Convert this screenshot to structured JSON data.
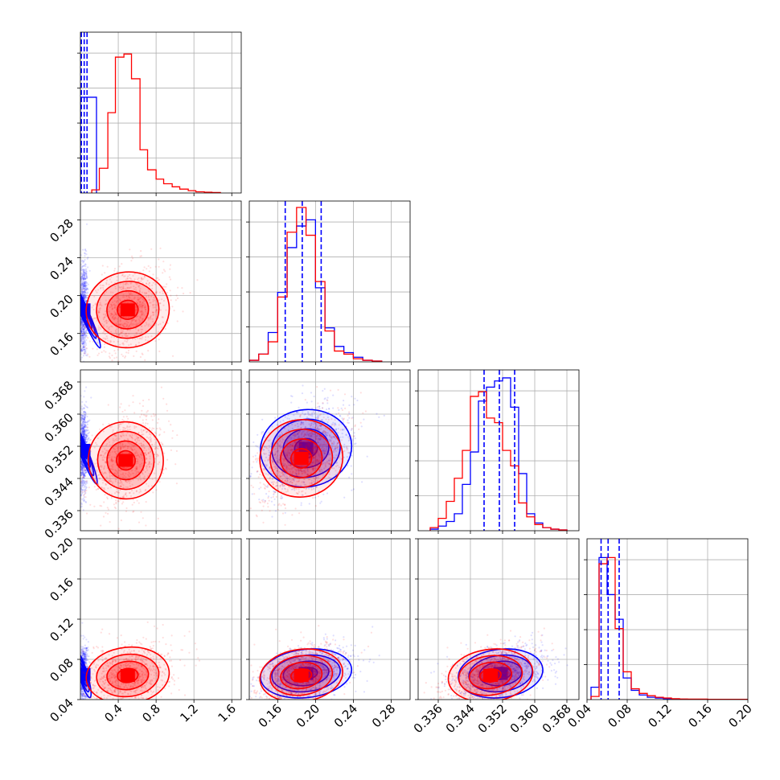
{
  "chart_data": {
    "type": "corner",
    "title": "",
    "grid": true,
    "series": [
      {
        "name": "",
        "color": "#0000ff"
      },
      {
        "name": "",
        "color": "#ff0000"
      }
    ],
    "parameters": [
      {
        "xlim": [
          0.0,
          1.7
        ],
        "ticks": [
          0.4,
          0.8,
          1.2,
          1.6
        ],
        "tick_labels": [
          "0.4",
          "0.8",
          "1.2",
          "1.6"
        ]
      },
      {
        "xlim": [
          0.13,
          0.3
        ],
        "ticks": [
          0.16,
          0.2,
          0.24,
          0.28
        ],
        "tick_labels": [
          "0.16",
          "0.20",
          "0.24",
          "0.28"
        ]
      },
      {
        "xlim": [
          0.331,
          0.371
        ],
        "ticks": [
          0.336,
          0.344,
          0.352,
          0.36,
          0.368
        ],
        "tick_labels": [
          "0.336",
          "0.344",
          "0.352",
          "0.360",
          "0.368"
        ]
      },
      {
        "xlim": [
          0.04,
          0.2
        ],
        "ticks": [
          0.04,
          0.08,
          0.12,
          0.16,
          0.2
        ],
        "tick_labels": [
          "0.04",
          "0.08",
          "0.12",
          "0.16",
          "0.20"
        ]
      }
    ],
    "quantiles": {
      "series": "blue",
      "values": [
        [
          0.01,
          0.04,
          0.07
        ],
        [
          0.168,
          0.186,
          0.206
        ],
        [
          0.3474,
          0.3512,
          0.355
        ],
        [
          0.054,
          0.061,
          0.072
        ]
      ]
    },
    "histograms": [
      {
        "blue": {
          "edges": [
            0.0,
            0.17
          ],
          "counts": [
            0.62
          ]
        },
        "red": {
          "edges": [
            0.12,
            0.2,
            0.29,
            0.37,
            0.46,
            0.54,
            0.63,
            0.71,
            0.8,
            0.88,
            0.97,
            1.05,
            1.14,
            1.22,
            1.31,
            1.39,
            1.48
          ],
          "counts": [
            0.02,
            0.16,
            0.52,
            0.88,
            0.9,
            0.74,
            0.28,
            0.15,
            0.09,
            0.06,
            0.04,
            0.025,
            0.015,
            0.008,
            0.005,
            0.003
          ]
        }
      },
      {
        "blue": {
          "edges": [
            0.13,
            0.14,
            0.15,
            0.16,
            0.17,
            0.18,
            0.19,
            0.2,
            0.21,
            0.22,
            0.23,
            0.24,
            0.25,
            0.26,
            0.27
          ],
          "counts": [
            0.01,
            0.05,
            0.19,
            0.45,
            0.74,
            0.88,
            0.92,
            0.48,
            0.22,
            0.1,
            0.06,
            0.03,
            0.01,
            0.005
          ]
        },
        "red": {
          "edges": [
            0.13,
            0.14,
            0.15,
            0.16,
            0.17,
            0.18,
            0.19,
            0.2,
            0.21,
            0.22,
            0.23,
            0.24,
            0.25,
            0.26,
            0.27
          ],
          "counts": [
            0.01,
            0.05,
            0.13,
            0.42,
            0.84,
            1.0,
            0.82,
            0.52,
            0.2,
            0.07,
            0.05,
            0.02,
            0.01,
            0.005
          ]
        }
      },
      {
        "blue": {
          "edges": [
            0.334,
            0.336,
            0.338,
            0.34,
            0.342,
            0.344,
            0.346,
            0.348,
            0.35,
            0.352,
            0.354,
            0.356,
            0.358,
            0.36,
            0.362,
            0.364,
            0.366,
            0.368
          ],
          "counts": [
            0.01,
            0.03,
            0.06,
            0.11,
            0.3,
            0.51,
            0.84,
            0.93,
            0.97,
            0.99,
            0.8,
            0.37,
            0.11,
            0.05,
            0.02,
            0.01,
            0.005
          ]
        },
        "red": {
          "edges": [
            0.334,
            0.336,
            0.338,
            0.34,
            0.342,
            0.344,
            0.346,
            0.348,
            0.35,
            0.352,
            0.354,
            0.356,
            0.358,
            0.36,
            0.362,
            0.364,
            0.366,
            0.368
          ],
          "counts": [
            0.02,
            0.08,
            0.19,
            0.34,
            0.52,
            0.87,
            0.9,
            0.73,
            0.7,
            0.52,
            0.42,
            0.18,
            0.09,
            0.04,
            0.02,
            0.01,
            0.005
          ]
        }
      },
      {
        "blue": {
          "edges": [
            0.044,
            0.052,
            0.06,
            0.068,
            0.076,
            0.084,
            0.092,
            0.1,
            0.108,
            0.116,
            0.124,
            0.132,
            0.14
          ],
          "counts": [
            0.08,
            0.92,
            0.68,
            0.52,
            0.14,
            0.06,
            0.03,
            0.015,
            0.01,
            0.006,
            0.004,
            0.002
          ]
        },
        "red": {
          "edges": [
            0.044,
            0.052,
            0.06,
            0.068,
            0.076,
            0.084,
            0.092,
            0.1,
            0.108,
            0.116,
            0.124,
            0.132,
            0.14,
            0.16,
            0.2
          ],
          "counts": [
            0.02,
            0.88,
            0.92,
            0.46,
            0.18,
            0.07,
            0.04,
            0.025,
            0.015,
            0.01,
            0.006,
            0.004,
            0.003,
            0.002
          ]
        }
      }
    ],
    "scatter_2d": [
      {
        "row": 1,
        "col": 0,
        "blue": {
          "mean": [
            0.03,
            0.185
          ],
          "sd": [
            0.02,
            0.022
          ],
          "rho": 0.1
        },
        "red": {
          "mean": [
            0.5,
            0.185
          ],
          "sd": [
            0.2,
            0.02
          ],
          "rho": 0.3
        }
      },
      {
        "row": 2,
        "col": 0,
        "blue": {
          "mean": [
            0.03,
            0.351
          ],
          "sd": [
            0.02,
            0.0045
          ],
          "rho": 0.1
        },
        "red": {
          "mean": [
            0.48,
            0.3485
          ],
          "sd": [
            0.18,
            0.0048
          ],
          "rho": 0.35
        }
      },
      {
        "row": 2,
        "col": 1,
        "blue": {
          "mean": [
            0.19,
            0.3515
          ],
          "sd": [
            0.022,
            0.0048
          ],
          "rho": 0.35
        },
        "red": {
          "mean": [
            0.185,
            0.349
          ],
          "sd": [
            0.02,
            0.0048
          ],
          "rho": 0.5
        }
      },
      {
        "row": 3,
        "col": 0,
        "blue": {
          "mean": [
            0.03,
            0.065
          ],
          "sd": [
            0.02,
            0.012
          ],
          "rho": 0.1
        },
        "red": {
          "mean": [
            0.5,
            0.064
          ],
          "sd": [
            0.2,
            0.014
          ],
          "rho": 0.3
        }
      },
      {
        "row": 3,
        "col": 1,
        "blue": {
          "mean": [
            0.19,
            0.066
          ],
          "sd": [
            0.022,
            0.012
          ],
          "rho": 0.4
        },
        "red": {
          "mean": [
            0.185,
            0.064
          ],
          "sd": [
            0.02,
            0.013
          ],
          "rho": 0.4
        }
      },
      {
        "row": 3,
        "col": 2,
        "blue": {
          "mean": [
            0.3515,
            0.066
          ],
          "sd": [
            0.0048,
            0.012
          ],
          "rho": 0.4
        },
        "red": {
          "mean": [
            0.349,
            0.064
          ],
          "sd": [
            0.0048,
            0.013
          ],
          "rho": 0.4
        }
      }
    ],
    "contour_levels_sigma": [
      0.5,
      1.0,
      1.5,
      2.0
    ]
  }
}
